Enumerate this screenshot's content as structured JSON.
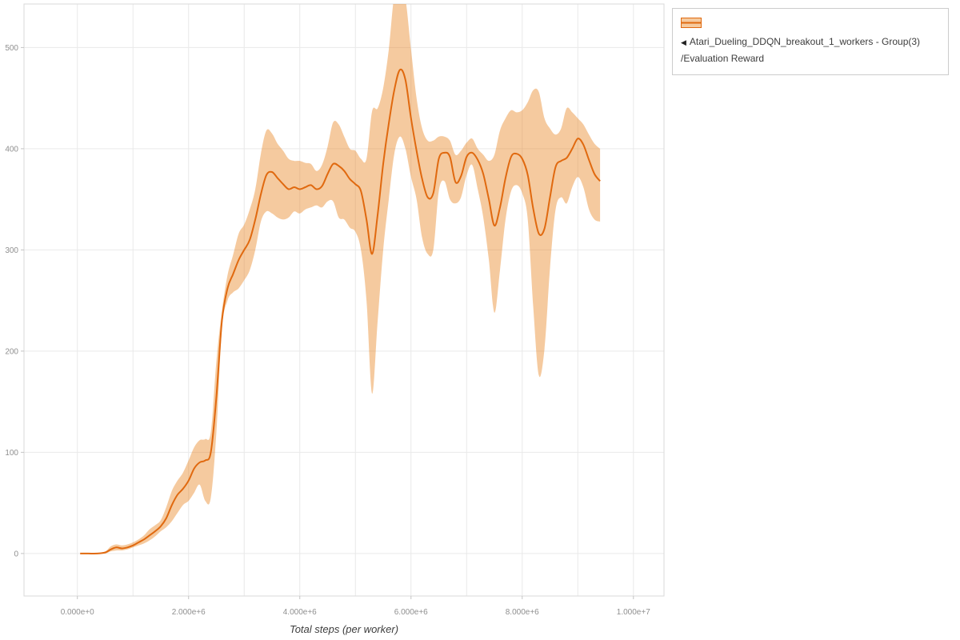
{
  "legend": {
    "collapse_icon": "◀",
    "series_name": "Atari_Dueling_DDQN_breakout_1_workers - Group(3)",
    "series_metric": "/Evaluation Reward"
  },
  "axes": {
    "x_title": "Total steps (per worker)"
  },
  "chart_data": {
    "type": "line",
    "title": "",
    "xlabel": "Total steps (per worker)",
    "ylabel": "",
    "legend_position": "outside-top-right",
    "grid": true,
    "xlim": [
      -960000,
      10550000
    ],
    "ylim": [
      -42,
      543
    ],
    "x_scale": 1000000,
    "x_ticks": [
      {
        "v": 0,
        "label": "0.000e+0"
      },
      {
        "v": 2000000,
        "label": "2.000e+6"
      },
      {
        "v": 4000000,
        "label": "4.000e+6"
      },
      {
        "v": 6000000,
        "label": "6.000e+6"
      },
      {
        "v": 8000000,
        "label": "8.000e+6"
      },
      {
        "v": 10000000,
        "label": "1.000e+7"
      }
    ],
    "y_ticks": [
      {
        "v": 0,
        "label": "0"
      },
      {
        "v": 100,
        "label": "100"
      },
      {
        "v": 200,
        "label": "200"
      },
      {
        "v": 300,
        "label": "300"
      },
      {
        "v": 400,
        "label": "400"
      },
      {
        "v": 500,
        "label": "500"
      }
    ],
    "x_grid": [
      0,
      1000000,
      2000000,
      3000000,
      4000000,
      5000000,
      6000000,
      7000000,
      8000000,
      9000000,
      10000000
    ],
    "y_grid": [
      0,
      100,
      200,
      300,
      400,
      500
    ],
    "colors": {
      "line": "#e0690f",
      "band": "#e8801a",
      "band_opacity": 0.42,
      "grid": "#e9e9e9",
      "border": "#dadada",
      "tick": "#c4c4c4"
    },
    "series": [
      {
        "name": "Atari_Dueling_DDQN_breakout_1_workers - Group(3)/Evaluation Reward",
        "x": [
          0.05,
          0.2,
          0.35,
          0.5,
          0.6,
          0.7,
          0.8,
          0.9,
          1.0,
          1.1,
          1.2,
          1.3,
          1.4,
          1.5,
          1.6,
          1.7,
          1.8,
          1.9,
          2.0,
          2.1,
          2.2,
          2.3,
          2.4,
          2.5,
          2.6,
          2.7,
          2.8,
          2.9,
          3.0,
          3.1,
          3.2,
          3.3,
          3.4,
          3.5,
          3.6,
          3.7,
          3.8,
          3.9,
          4.0,
          4.1,
          4.2,
          4.3,
          4.4,
          4.5,
          4.6,
          4.7,
          4.8,
          4.9,
          5.0,
          5.1,
          5.2,
          5.3,
          5.4,
          5.5,
          5.6,
          5.7,
          5.8,
          5.9,
          6.0,
          6.1,
          6.2,
          6.3,
          6.4,
          6.5,
          6.6,
          6.7,
          6.8,
          6.9,
          7.0,
          7.1,
          7.2,
          7.3,
          7.4,
          7.5,
          7.6,
          7.7,
          7.8,
          7.9,
          8.0,
          8.1,
          8.2,
          8.3,
          8.4,
          8.5,
          8.6,
          8.7,
          8.8,
          8.9,
          9.0,
          9.1,
          9.2,
          9.3,
          9.4
        ],
        "mean": [
          0,
          0,
          0,
          1,
          4,
          6,
          5,
          6,
          8,
          11,
          14,
          18,
          22,
          27,
          35,
          48,
          58,
          64,
          72,
          84,
          90,
          92,
          100,
          155,
          230,
          262,
          276,
          290,
          300,
          310,
          330,
          355,
          374,
          377,
          371,
          365,
          360,
          362,
          360,
          362,
          364,
          360,
          363,
          375,
          385,
          383,
          378,
          370,
          365,
          358,
          330,
          296,
          335,
          385,
          425,
          458,
          478,
          468,
          430,
          398,
          370,
          352,
          356,
          390,
          396,
          392,
          367,
          373,
          392,
          396,
          389,
          375,
          350,
          324,
          342,
          371,
          392,
          395,
          390,
          374,
          340,
          316,
          321,
          352,
          382,
          388,
          391,
          400,
          410,
          404,
          389,
          375,
          368
        ],
        "lower": [
          0,
          0,
          0,
          0,
          2,
          3,
          3,
          4,
          6,
          8,
          10,
          13,
          17,
          22,
          26,
          32,
          40,
          48,
          52,
          60,
          68,
          52,
          55,
          120,
          222,
          250,
          258,
          262,
          270,
          280,
          300,
          328,
          338,
          336,
          332,
          330,
          332,
          338,
          336,
          340,
          342,
          344,
          342,
          348,
          348,
          332,
          330,
          322,
          318,
          300,
          250,
          158,
          230,
          300,
          350,
          395,
          412,
          400,
          372,
          350,
          312,
          296,
          300,
          358,
          368,
          350,
          346,
          352,
          374,
          384,
          360,
          332,
          290,
          238,
          280,
          330,
          358,
          364,
          356,
          330,
          242,
          176,
          202,
          282,
          340,
          352,
          346,
          362,
          372,
          362,
          340,
          330,
          328
        ],
        "upper": [
          0,
          0,
          0,
          2,
          7,
          9,
          8,
          9,
          11,
          14,
          18,
          24,
          28,
          33,
          46,
          62,
          72,
          80,
          92,
          105,
          112,
          113,
          120,
          190,
          240,
          275,
          295,
          316,
          325,
          340,
          360,
          395,
          418,
          415,
          405,
          398,
          390,
          388,
          388,
          386,
          385,
          378,
          384,
          402,
          426,
          424,
          412,
          400,
          398,
          390,
          390,
          437,
          440,
          460,
          498,
          552,
          560,
          548,
          498,
          450,
          420,
          408,
          408,
          412,
          412,
          408,
          394,
          398,
          406,
          410,
          400,
          394,
          388,
          394,
          418,
          430,
          438,
          436,
          438,
          446,
          458,
          456,
          430,
          420,
          414,
          420,
          440,
          436,
          430,
          424,
          414,
          405,
          400
        ]
      }
    ]
  }
}
